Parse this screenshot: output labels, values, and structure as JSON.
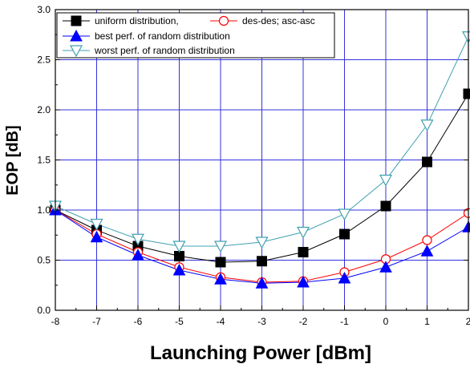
{
  "chart_data": {
    "type": "line",
    "title": "",
    "xlabel": "Launching Power [dBm]",
    "ylabel": "EOP [dB]",
    "xlim": [
      -8,
      2
    ],
    "ylim": [
      0.0,
      3.0
    ],
    "x_ticks": [
      -8,
      -7,
      -6,
      -5,
      -4,
      -3,
      -2,
      -1,
      0,
      1,
      2
    ],
    "x_tick_labels": [
      "-8",
      "-7",
      "-6",
      "-5",
      "-4",
      "-3",
      "-2",
      "-1",
      "0",
      "1",
      "2"
    ],
    "y_ticks": [
      0.0,
      0.5,
      1.0,
      1.5,
      2.0,
      2.5,
      3.0
    ],
    "y_tick_labels": [
      "0.0",
      "0.5",
      "1.0",
      "1.5",
      "2.0",
      "2.5",
      "3.0"
    ],
    "grid": true,
    "legend_position": "top-left",
    "x": [
      -8,
      -7,
      -6,
      -5,
      -4,
      -3,
      -2,
      -1,
      0,
      1,
      2
    ],
    "series": [
      {
        "name": "uniform distribution,",
        "marker": "square-filled",
        "color": "#000000",
        "line_color": "#000000",
        "values": [
          1.0,
          0.8,
          0.64,
          0.54,
          0.48,
          0.49,
          0.58,
          0.76,
          1.04,
          1.48,
          2.16
        ]
      },
      {
        "name": "des-des; asc-asc",
        "marker": "circle-open",
        "color": "#ff0000",
        "line_color": "#ff0000",
        "values": [
          1.0,
          0.76,
          0.58,
          0.43,
          0.33,
          0.28,
          0.29,
          0.38,
          0.51,
          0.7,
          0.97
        ]
      },
      {
        "name": "best perf. of random distribution",
        "marker": "triangle-up-filled",
        "color": "#0000ff",
        "line_color": "#0000ff",
        "values": [
          1.0,
          0.73,
          0.55,
          0.4,
          0.31,
          0.27,
          0.28,
          0.32,
          0.43,
          0.59,
          0.83
        ]
      },
      {
        "name": "worst perf. of random distribution",
        "marker": "triangle-down-open",
        "color": "#40a0b0",
        "line_color": "#40a0b0",
        "values": [
          1.04,
          0.86,
          0.71,
          0.64,
          0.64,
          0.68,
          0.78,
          0.96,
          1.3,
          1.85,
          2.73
        ]
      }
    ]
  }
}
